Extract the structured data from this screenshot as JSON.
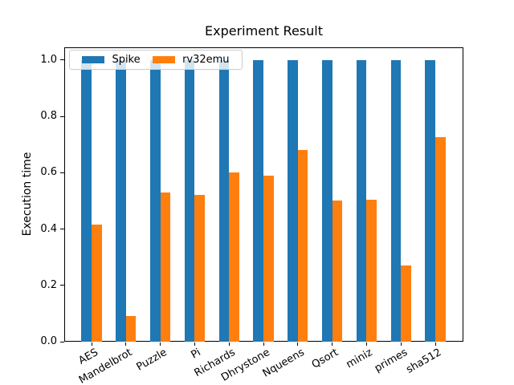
{
  "chart_data": {
    "type": "bar",
    "title": "Experiment Result",
    "xlabel": "",
    "ylabel": "Execution time",
    "categories": [
      "AES",
      "Mandelbrot",
      "Puzzle",
      "Pi",
      "Richards",
      "Dhrystone",
      "Nqueens",
      "Qsort",
      "miniz",
      "primes",
      "sha512"
    ],
    "series": [
      {
        "name": "Spike",
        "color": "#1f77b4",
        "values": [
          1.0,
          1.0,
          1.0,
          1.0,
          1.0,
          1.0,
          1.0,
          1.0,
          1.0,
          1.0,
          1.0
        ]
      },
      {
        "name": "rv32emu",
        "color": "#ff7f0e",
        "values": [
          0.415,
          0.09,
          0.53,
          0.52,
          0.6,
          0.59,
          0.68,
          0.5,
          0.505,
          0.27,
          0.725
        ]
      }
    ],
    "ytick_labels": [
      "0.0",
      "0.2",
      "0.4",
      "0.6",
      "0.8",
      "1.0"
    ],
    "ylim": [
      0,
      1.045
    ],
    "grid": false,
    "legend": {
      "position": "upper left",
      "entries": [
        "Spike",
        "rv32emu"
      ]
    }
  }
}
